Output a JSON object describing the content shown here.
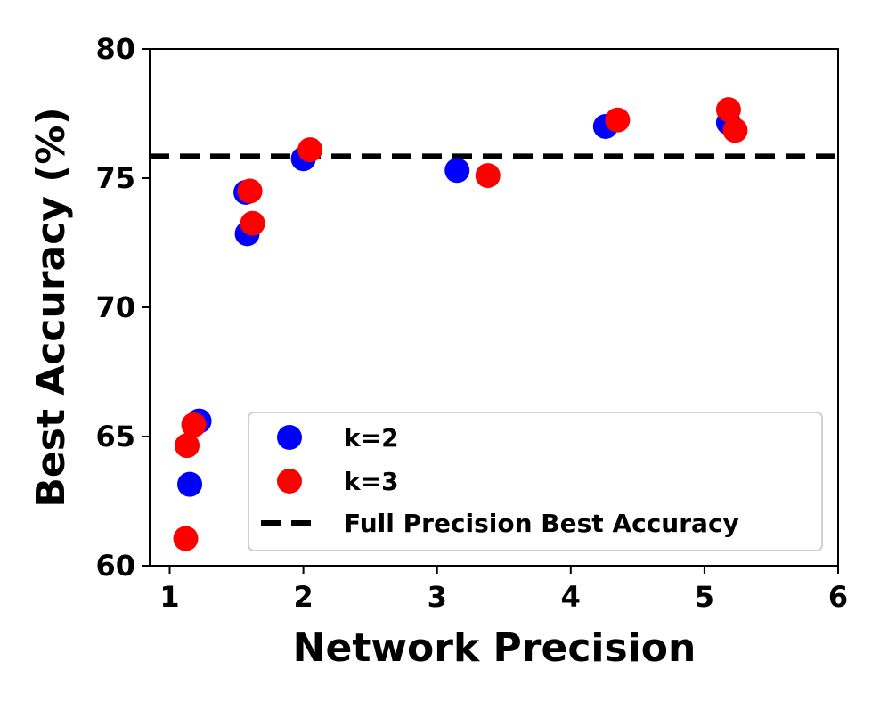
{
  "chart_data": {
    "type": "scatter",
    "xlabel": "Network Precision",
    "ylabel": "Best Accuracy (%)",
    "xlim": [
      0.85,
      6
    ],
    "ylim": [
      60,
      80
    ],
    "xticks": [
      1,
      2,
      3,
      4,
      5,
      6
    ],
    "yticks": [
      60,
      65,
      70,
      75,
      80
    ],
    "legend_position": "lower-right",
    "series": [
      {
        "name": "k=2",
        "color": "#0000ff",
        "points": [
          {
            "x": 1.15,
            "y": 63.15
          },
          {
            "x": 1.22,
            "y": 65.6
          },
          {
            "x": 1.57,
            "y": 74.45
          },
          {
            "x": 1.58,
            "y": 72.85
          },
          {
            "x": 2.0,
            "y": 75.75
          },
          {
            "x": 3.15,
            "y": 75.3
          },
          {
            "x": 4.26,
            "y": 77.0
          },
          {
            "x": 5.18,
            "y": 77.15
          }
        ]
      },
      {
        "name": "k=3",
        "color": "#ff0000",
        "points": [
          {
            "x": 1.12,
            "y": 61.05
          },
          {
            "x": 1.13,
            "y": 64.65
          },
          {
            "x": 1.18,
            "y": 65.45
          },
          {
            "x": 1.6,
            "y": 74.5
          },
          {
            "x": 1.62,
            "y": 73.25
          },
          {
            "x": 2.05,
            "y": 76.1
          },
          {
            "x": 3.38,
            "y": 75.1
          },
          {
            "x": 4.35,
            "y": 77.25
          },
          {
            "x": 5.18,
            "y": 77.65
          },
          {
            "x": 5.23,
            "y": 76.85
          }
        ]
      }
    ],
    "reference_line": {
      "name": "Full Precision Best Accuracy",
      "y": 75.85,
      "style": "dashed",
      "color": "#000000"
    }
  }
}
